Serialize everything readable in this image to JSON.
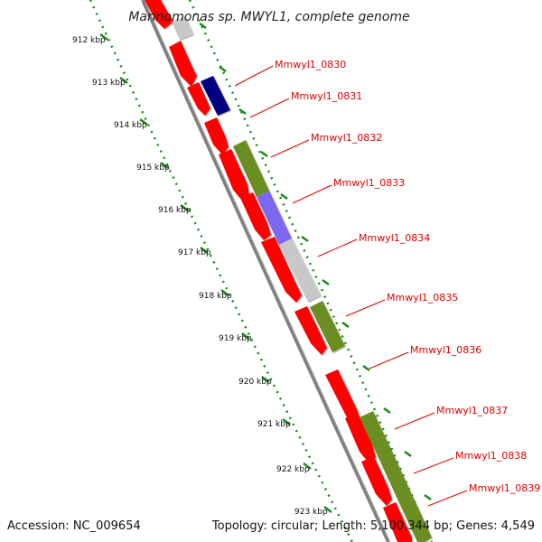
{
  "title": "Marinomonas sp. MWYL1, complete genome",
  "accession_text": "Accession: NC_009654",
  "summary_text": "Topology: circular; Length: 5,100,344 bp; Genes: 4,549",
  "colors": {
    "forward_gene": "#ff0000",
    "cds_olive": "#6b8e23",
    "cds_navy": "#000080",
    "cds_purple": "#7b68ee",
    "cds_gray": "#c8c8c8",
    "backbone": "#808080",
    "dotted_track": "#1a8a1a",
    "label": "#e00000"
  },
  "kbp_labels": [
    "912 kbp",
    "913 kbp",
    "914 kbp",
    "915 kbp",
    "916 kbp",
    "917 kbp",
    "918 kbp",
    "919 kbp",
    "920 kbp",
    "921 kbp",
    "922 kbp",
    "923 kbp"
  ],
  "genes": [
    {
      "name": "Mmwyl1_0830"
    },
    {
      "name": "Mmwyl1_0831"
    },
    {
      "name": "Mmwyl1_0832"
    },
    {
      "name": "Mmwyl1_0833"
    },
    {
      "name": "Mmwyl1_0834"
    },
    {
      "name": "Mmwyl1_0835"
    },
    {
      "name": "Mmwyl1_0836"
    },
    {
      "name": "Mmwyl1_0837"
    },
    {
      "name": "Mmwyl1_0838"
    },
    {
      "name": "Mmwyl1_0839"
    }
  ]
}
